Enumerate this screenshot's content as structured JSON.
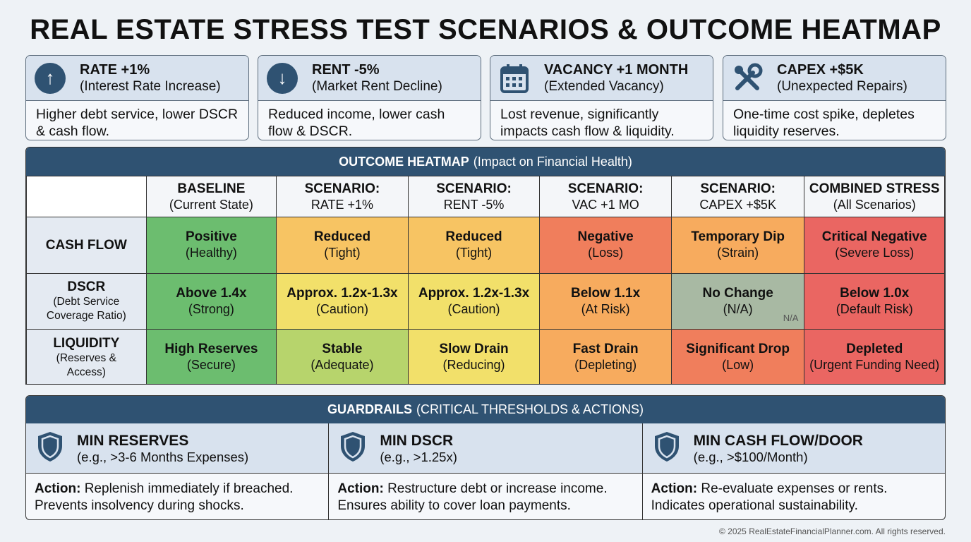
{
  "title": "REAL ESTATE STRESS TEST SCENARIOS & OUTCOME HEATMAP",
  "scenarios": [
    {
      "name": "RATE +1%",
      "sub": "(Interest Rate Increase)",
      "desc": "Higher debt service, lower DSCR & cash flow.",
      "icon": "arrow-up-icon"
    },
    {
      "name": "RENT -5%",
      "sub": "(Market Rent Decline)",
      "desc": "Reduced income, lower cash flow & DSCR.",
      "icon": "arrow-down-icon"
    },
    {
      "name": "VACANCY +1 MONTH",
      "sub": "(Extended Vacancy)",
      "desc": "Lost revenue, significantly impacts cash flow & liquidity.",
      "icon": "calendar-icon"
    },
    {
      "name": "CAPEX +$5K",
      "sub": "(Unexpected Repairs)",
      "desc": "One-time cost spike, depletes liquidity reserves.",
      "icon": "tools-icon"
    }
  ],
  "heatmap": {
    "title_bold": "OUTCOME HEATMAP",
    "title_rest": "(Impact on Financial Health)",
    "columns": [
      {
        "l1": "BASELINE",
        "l2": "(Current State)"
      },
      {
        "l1": "SCENARIO:",
        "l2": "RATE +1%"
      },
      {
        "l1": "SCENARIO:",
        "l2": "RENT -5%"
      },
      {
        "l1": "SCENARIO:",
        "l2": "VAC +1 MO"
      },
      {
        "l1": "SCENARIO:",
        "l2": "CAPEX +$5K"
      },
      {
        "l1": "COMBINED STRESS",
        "l2": "(All Scenarios)"
      }
    ],
    "rows": [
      {
        "label": "CASH FLOW",
        "sub": "",
        "cells": [
          {
            "main": "Positive",
            "sub": "(Healthy)",
            "color": "#6cbd6f"
          },
          {
            "main": "Reduced",
            "sub": "(Tight)",
            "color": "#f7c463"
          },
          {
            "main": "Reduced",
            "sub": "(Tight)",
            "color": "#f7c463"
          },
          {
            "main": "Negative",
            "sub": "(Loss)",
            "color": "#f07e5c"
          },
          {
            "main": "Temporary Dip",
            "sub": "(Strain)",
            "color": "#f7ab5e"
          },
          {
            "main": "Critical Negative",
            "sub": "(Severe Loss)",
            "color": "#ea6662"
          }
        ]
      },
      {
        "label": "DSCR",
        "sub": "(Debt Service Coverage Ratio)",
        "cells": [
          {
            "main": "Above 1.4x",
            "sub": "(Strong)",
            "color": "#6cbd6f"
          },
          {
            "main": "Approx. 1.2x-1.3x",
            "sub": "(Caution)",
            "color": "#f2e06a"
          },
          {
            "main": "Approx. 1.2x-1.3x",
            "sub": "(Caution)",
            "color": "#f2e06a"
          },
          {
            "main": "Below 1.1x",
            "sub": "(At Risk)",
            "color": "#f7ab5e"
          },
          {
            "main": "No Change",
            "sub": "(N/A)",
            "color": "#a8b9a3",
            "tag": "N/A"
          },
          {
            "main": "Below 1.0x",
            "sub": "(Default Risk)",
            "color": "#ea6662"
          }
        ]
      },
      {
        "label": "LIQUIDITY",
        "sub": "(Reserves & Access)",
        "cells": [
          {
            "main": "High Reserves",
            "sub": "(Secure)",
            "color": "#6cbd6f"
          },
          {
            "main": "Stable",
            "sub": "(Adequate)",
            "color": "#b7d46c"
          },
          {
            "main": "Slow Drain",
            "sub": "(Reducing)",
            "color": "#f2e06a"
          },
          {
            "main": "Fast Drain",
            "sub": "(Depleting)",
            "color": "#f7ab5e"
          },
          {
            "main": "Significant Drop",
            "sub": "(Low)",
            "color": "#f07e5c"
          },
          {
            "main": "Depleted",
            "sub": "(Urgent Funding Need)",
            "color": "#ea6662"
          }
        ]
      }
    ]
  },
  "guardrails": {
    "title_bold": "GUARDRAILS",
    "title_rest": "(CRITICAL THRESHOLDS & ACTIONS)",
    "items": [
      {
        "name": "MIN RESERVES",
        "sub": "(e.g., >3-6 Months Expenses)",
        "action_label": "Action:",
        "action": "Replenish immediately if breached. Prevents insolvency during shocks."
      },
      {
        "name": "MIN DSCR",
        "sub": "(e.g., >1.25x)",
        "action_label": "Action:",
        "action": "Restructure debt or increase income. Ensures ability to cover loan payments."
      },
      {
        "name": "MIN CASH FLOW/DOOR",
        "sub": "(e.g., >$100/Month)",
        "action_label": "Action:",
        "action": "Re-evaluate expenses or rents. Indicates operational sustainability."
      }
    ]
  },
  "footer": "© 2025 RealEstateFinancialPlanner.com. All rights reserved.",
  "colors": {
    "accent": "#2f5272"
  }
}
